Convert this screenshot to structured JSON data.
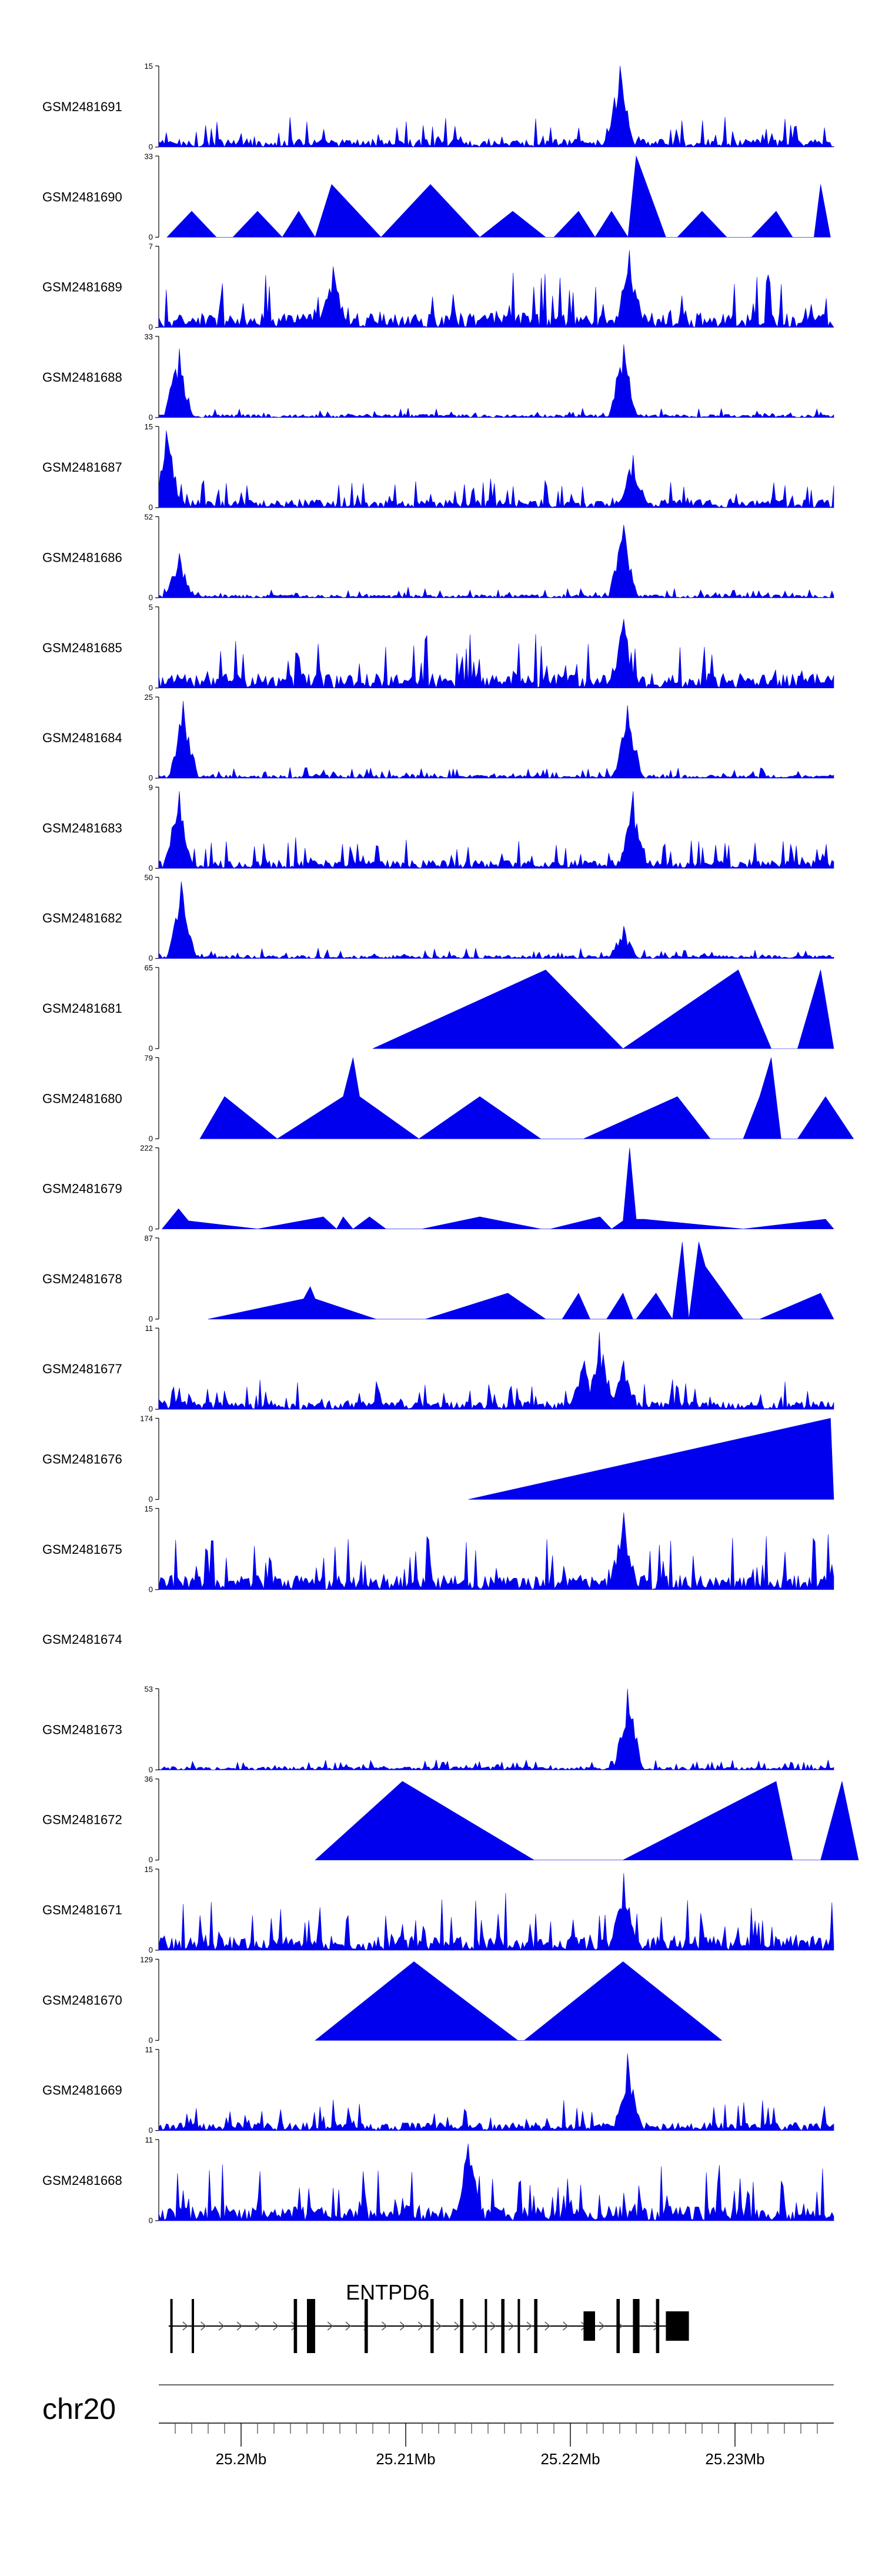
{
  "colors": {
    "signal": "#0000ee",
    "axis": "#000000",
    "gene": "#000000",
    "ideogram": "#666666"
  },
  "chart_data": {
    "type": "area",
    "title": "",
    "xlabel": "",
    "ylabel": "",
    "xlim_mb": [
      25.195,
      25.236
    ],
    "tracks": [
      {
        "name": "GSM2481691",
        "ymax": 15,
        "style": "dense",
        "peaks": [
          {
            "x": 25.223,
            "h": 1.0
          }
        ]
      },
      {
        "name": "GSM2481690",
        "ymax": 33,
        "style": "sparse",
        "points": [
          [
            25.1955,
            0
          ],
          [
            25.197,
            0.32
          ],
          [
            25.1985,
            0
          ],
          [
            25.1995,
            0
          ],
          [
            25.201,
            0.32
          ],
          [
            25.2025,
            0
          ],
          [
            25.2035,
            0.32
          ],
          [
            25.2045,
            0
          ],
          [
            25.2055,
            0.65
          ],
          [
            25.2085,
            0
          ],
          [
            25.2115,
            0.65
          ],
          [
            25.2145,
            0
          ],
          [
            25.2165,
            0.32
          ],
          [
            25.2185,
            0
          ],
          [
            25.219,
            0
          ],
          [
            25.2205,
            0.32
          ],
          [
            25.2215,
            0
          ],
          [
            25.2225,
            0.32
          ],
          [
            25.2235,
            0
          ],
          [
            25.224,
            1.0
          ],
          [
            25.2258,
            0
          ],
          [
            25.2265,
            0
          ],
          [
            25.228,
            0.32
          ],
          [
            25.2295,
            0
          ],
          [
            25.231,
            0
          ],
          [
            25.2325,
            0.32
          ],
          [
            25.2335,
            0
          ],
          [
            25.2348,
            0
          ],
          [
            25.2352,
            0.65
          ],
          [
            25.2358,
            0
          ]
        ]
      },
      {
        "name": "GSM2481689",
        "ymax": 7,
        "style": "dense-tall",
        "peaks": [
          {
            "x": 25.2056,
            "h": 0.75
          },
          {
            "x": 25.2236,
            "h": 0.95
          }
        ]
      },
      {
        "name": "GSM2481688",
        "ymax": 33,
        "style": "dense-low",
        "peaks": [
          {
            "x": 25.1962,
            "h": 0.85
          },
          {
            "x": 25.2232,
            "h": 0.9
          }
        ]
      },
      {
        "name": "GSM2481687",
        "ymax": 15,
        "style": "dense",
        "peaks": [
          {
            "x": 25.1955,
            "h": 0.95
          },
          {
            "x": 25.2238,
            "h": 0.65
          }
        ]
      },
      {
        "name": "GSM2481686",
        "ymax": 52,
        "style": "dense-low",
        "peaks": [
          {
            "x": 25.1962,
            "h": 0.55
          },
          {
            "x": 25.2232,
            "h": 0.9
          }
        ]
      },
      {
        "name": "GSM2481685",
        "ymax": 5,
        "style": "dense-tall",
        "peaks": [
          {
            "x": 25.2232,
            "h": 0.85
          }
        ]
      },
      {
        "name": "GSM2481684",
        "ymax": 25,
        "style": "dense-low",
        "peaks": [
          {
            "x": 25.1965,
            "h": 0.95
          },
          {
            "x": 25.2235,
            "h": 0.9
          }
        ]
      },
      {
        "name": "GSM2481683",
        "ymax": 9,
        "style": "dense",
        "peaks": [
          {
            "x": 25.1962,
            "h": 0.95
          },
          {
            "x": 25.2238,
            "h": 0.95
          }
        ]
      },
      {
        "name": "GSM2481682",
        "ymax": 50,
        "style": "dense-low",
        "peaks": [
          {
            "x": 25.1964,
            "h": 0.95
          },
          {
            "x": 25.2232,
            "h": 0.4
          }
        ]
      },
      {
        "name": "GSM2481681",
        "ymax": 65,
        "style": "sparse",
        "points": [
          [
            25.208,
            0
          ],
          [
            25.2185,
            0.97
          ],
          [
            25.2232,
            0
          ],
          [
            25.2302,
            0.97
          ],
          [
            25.2322,
            0
          ],
          [
            25.2338,
            0
          ],
          [
            25.2352,
            0.97
          ],
          [
            25.236,
            0
          ]
        ]
      },
      {
        "name": "GSM2481680",
        "ymax": 79,
        "style": "sparse",
        "points": [
          [
            25.1975,
            0
          ],
          [
            25.199,
            0.52
          ],
          [
            25.2022,
            0
          ],
          [
            25.2062,
            0.52
          ],
          [
            25.2068,
            1.0
          ],
          [
            25.2072,
            0.52
          ],
          [
            25.2108,
            0
          ],
          [
            25.2145,
            0.52
          ],
          [
            25.2182,
            0
          ],
          [
            25.2208,
            0
          ],
          [
            25.2265,
            0.52
          ],
          [
            25.2285,
            0
          ],
          [
            25.2305,
            0
          ],
          [
            25.2315,
            0.52
          ],
          [
            25.2322,
            1.0
          ],
          [
            25.2328,
            0
          ],
          [
            25.2338,
            0
          ],
          [
            25.2355,
            0.52
          ],
          [
            25.2372,
            0
          ]
        ]
      },
      {
        "name": "GSM2481679",
        "ymax": 222,
        "style": "sparse",
        "points": [
          [
            25.1952,
            0
          ],
          [
            25.1962,
            0.25
          ],
          [
            25.1968,
            0.1
          ],
          [
            25.201,
            0
          ],
          [
            25.205,
            0.15
          ],
          [
            25.2058,
            0
          ],
          [
            25.2062,
            0.15
          ],
          [
            25.2068,
            0
          ],
          [
            25.2078,
            0.15
          ],
          [
            25.2088,
            0
          ],
          [
            25.211,
            0
          ],
          [
            25.2145,
            0.15
          ],
          [
            25.2182,
            0
          ],
          [
            25.2188,
            0
          ],
          [
            25.2218,
            0.15
          ],
          [
            25.2225,
            0
          ],
          [
            25.2232,
            0.1
          ],
          [
            25.2236,
            1.0
          ],
          [
            25.224,
            0.12
          ],
          [
            25.2245,
            0.12
          ],
          [
            25.2305,
            0
          ],
          [
            25.2355,
            0.12
          ],
          [
            25.236,
            0
          ]
        ]
      },
      {
        "name": "GSM2481678",
        "ymax": 87,
        "style": "sparse",
        "points": [
          [
            25.198,
            0
          ],
          [
            25.2038,
            0.25
          ],
          [
            25.2042,
            0.4
          ],
          [
            25.2045,
            0.25
          ],
          [
            25.2082,
            0
          ],
          [
            25.2112,
            0
          ],
          [
            25.2162,
            0.32
          ],
          [
            25.2185,
            0
          ],
          [
            25.2195,
            0
          ],
          [
            25.2205,
            0.32
          ],
          [
            25.2212,
            0
          ],
          [
            25.2222,
            0
          ],
          [
            25.2232,
            0.32
          ],
          [
            25.2238,
            0
          ],
          [
            25.224,
            0
          ],
          [
            25.2252,
            0.32
          ],
          [
            25.2262,
            0
          ],
          [
            25.2268,
            0.95
          ],
          [
            25.2272,
            0
          ],
          [
            25.2278,
            0.95
          ],
          [
            25.2282,
            0.65
          ],
          [
            25.2305,
            0
          ],
          [
            25.2315,
            0
          ],
          [
            25.2352,
            0.32
          ],
          [
            25.236,
            0
          ]
        ]
      },
      {
        "name": "GSM2481677",
        "ymax": 11,
        "style": "dense",
        "peaks": [
          {
            "x": 25.2218,
            "h": 0.95
          },
          {
            "x": 25.2208,
            "h": 0.6
          },
          {
            "x": 25.2232,
            "h": 0.6
          }
        ]
      },
      {
        "name": "GSM2481676",
        "ymax": 174,
        "style": "sparse",
        "points": [
          [
            25.2138,
            0
          ],
          [
            25.2358,
            1.0
          ],
          [
            25.236,
            0
          ]
        ]
      },
      {
        "name": "GSM2481675",
        "ymax": 15,
        "style": "dense-tall",
        "peaks": [
          {
            "x": 25.2232,
            "h": 0.95
          }
        ]
      },
      {
        "name": "GSM2481674",
        "ymax": null,
        "style": "empty"
      },
      {
        "name": "GSM2481673",
        "ymax": 53,
        "style": "dense-low",
        "peaks": [
          {
            "x": 25.2235,
            "h": 1.0
          }
        ]
      },
      {
        "name": "GSM2481672",
        "ymax": 36,
        "style": "sparse",
        "points": [
          [
            25.2045,
            0
          ],
          [
            25.2098,
            0.97
          ],
          [
            25.2178,
            0
          ],
          [
            25.2232,
            0
          ],
          [
            25.2325,
            0.97
          ],
          [
            25.2335,
            0
          ],
          [
            25.2352,
            0
          ],
          [
            25.2365,
            0.97
          ],
          [
            25.2375,
            0
          ]
        ]
      },
      {
        "name": "GSM2481671",
        "ymax": 15,
        "style": "dense-tall",
        "peaks": [
          {
            "x": 25.2232,
            "h": 0.95
          }
        ]
      },
      {
        "name": "GSM2481670",
        "ymax": 129,
        "style": "sparse",
        "points": [
          [
            25.2045,
            0
          ],
          [
            25.2105,
            0.97
          ],
          [
            25.2168,
            0
          ],
          [
            25.2172,
            0
          ],
          [
            25.2232,
            0.97
          ],
          [
            25.2292,
            0
          ]
        ]
      },
      {
        "name": "GSM2481669",
        "ymax": 11,
        "style": "dense",
        "peaks": [
          {
            "x": 25.2235,
            "h": 0.95
          }
        ]
      },
      {
        "name": "GSM2481668",
        "ymax": 11,
        "style": "dense-tall",
        "peaks": [
          {
            "x": 25.2138,
            "h": 0.95
          }
        ]
      }
    ],
    "gene": {
      "name": "ENTPD6",
      "strand": "+",
      "start_mb": 25.1956,
      "end_mb": 25.2272,
      "exons_mb": [
        [
          25.1957,
          25.1958
        ],
        [
          25.197,
          25.1971
        ],
        [
          25.2032,
          25.2034
        ],
        [
          25.204,
          25.2045
        ],
        [
          25.2075,
          25.2077
        ],
        [
          25.2115,
          25.2117
        ],
        [
          25.2133,
          25.2135
        ],
        [
          25.2148,
          25.2149
        ],
        [
          25.2158,
          25.216
        ],
        [
          25.2168,
          25.2169
        ],
        [
          25.2178,
          25.218
        ],
        [
          25.2208,
          25.2215
        ],
        [
          25.2228,
          25.223
        ],
        [
          25.2238,
          25.2242
        ],
        [
          25.2252,
          25.2254
        ],
        [
          25.2258,
          25.2272
        ]
      ]
    },
    "chromosome": "chr20",
    "axis": {
      "tick_labels": [
        "25.2Mb",
        "25.21Mb",
        "25.22Mb",
        "25.23Mb"
      ],
      "tick_values_mb": [
        25.2,
        25.21,
        25.22,
        25.23
      ],
      "minor_ticks_mb": [
        25.196,
        25.197,
        25.198,
        25.199,
        25.201,
        25.202,
        25.203,
        25.204,
        25.205,
        25.206,
        25.207,
        25.208,
        25.209,
        25.211,
        25.212,
        25.213,
        25.214,
        25.215,
        25.216,
        25.217,
        25.218,
        25.219,
        25.221,
        25.222,
        25.223,
        25.224,
        25.225,
        25.226,
        25.227,
        25.228,
        25.229,
        25.231,
        25.232,
        25.233,
        25.234,
        25.235
      ]
    }
  }
}
